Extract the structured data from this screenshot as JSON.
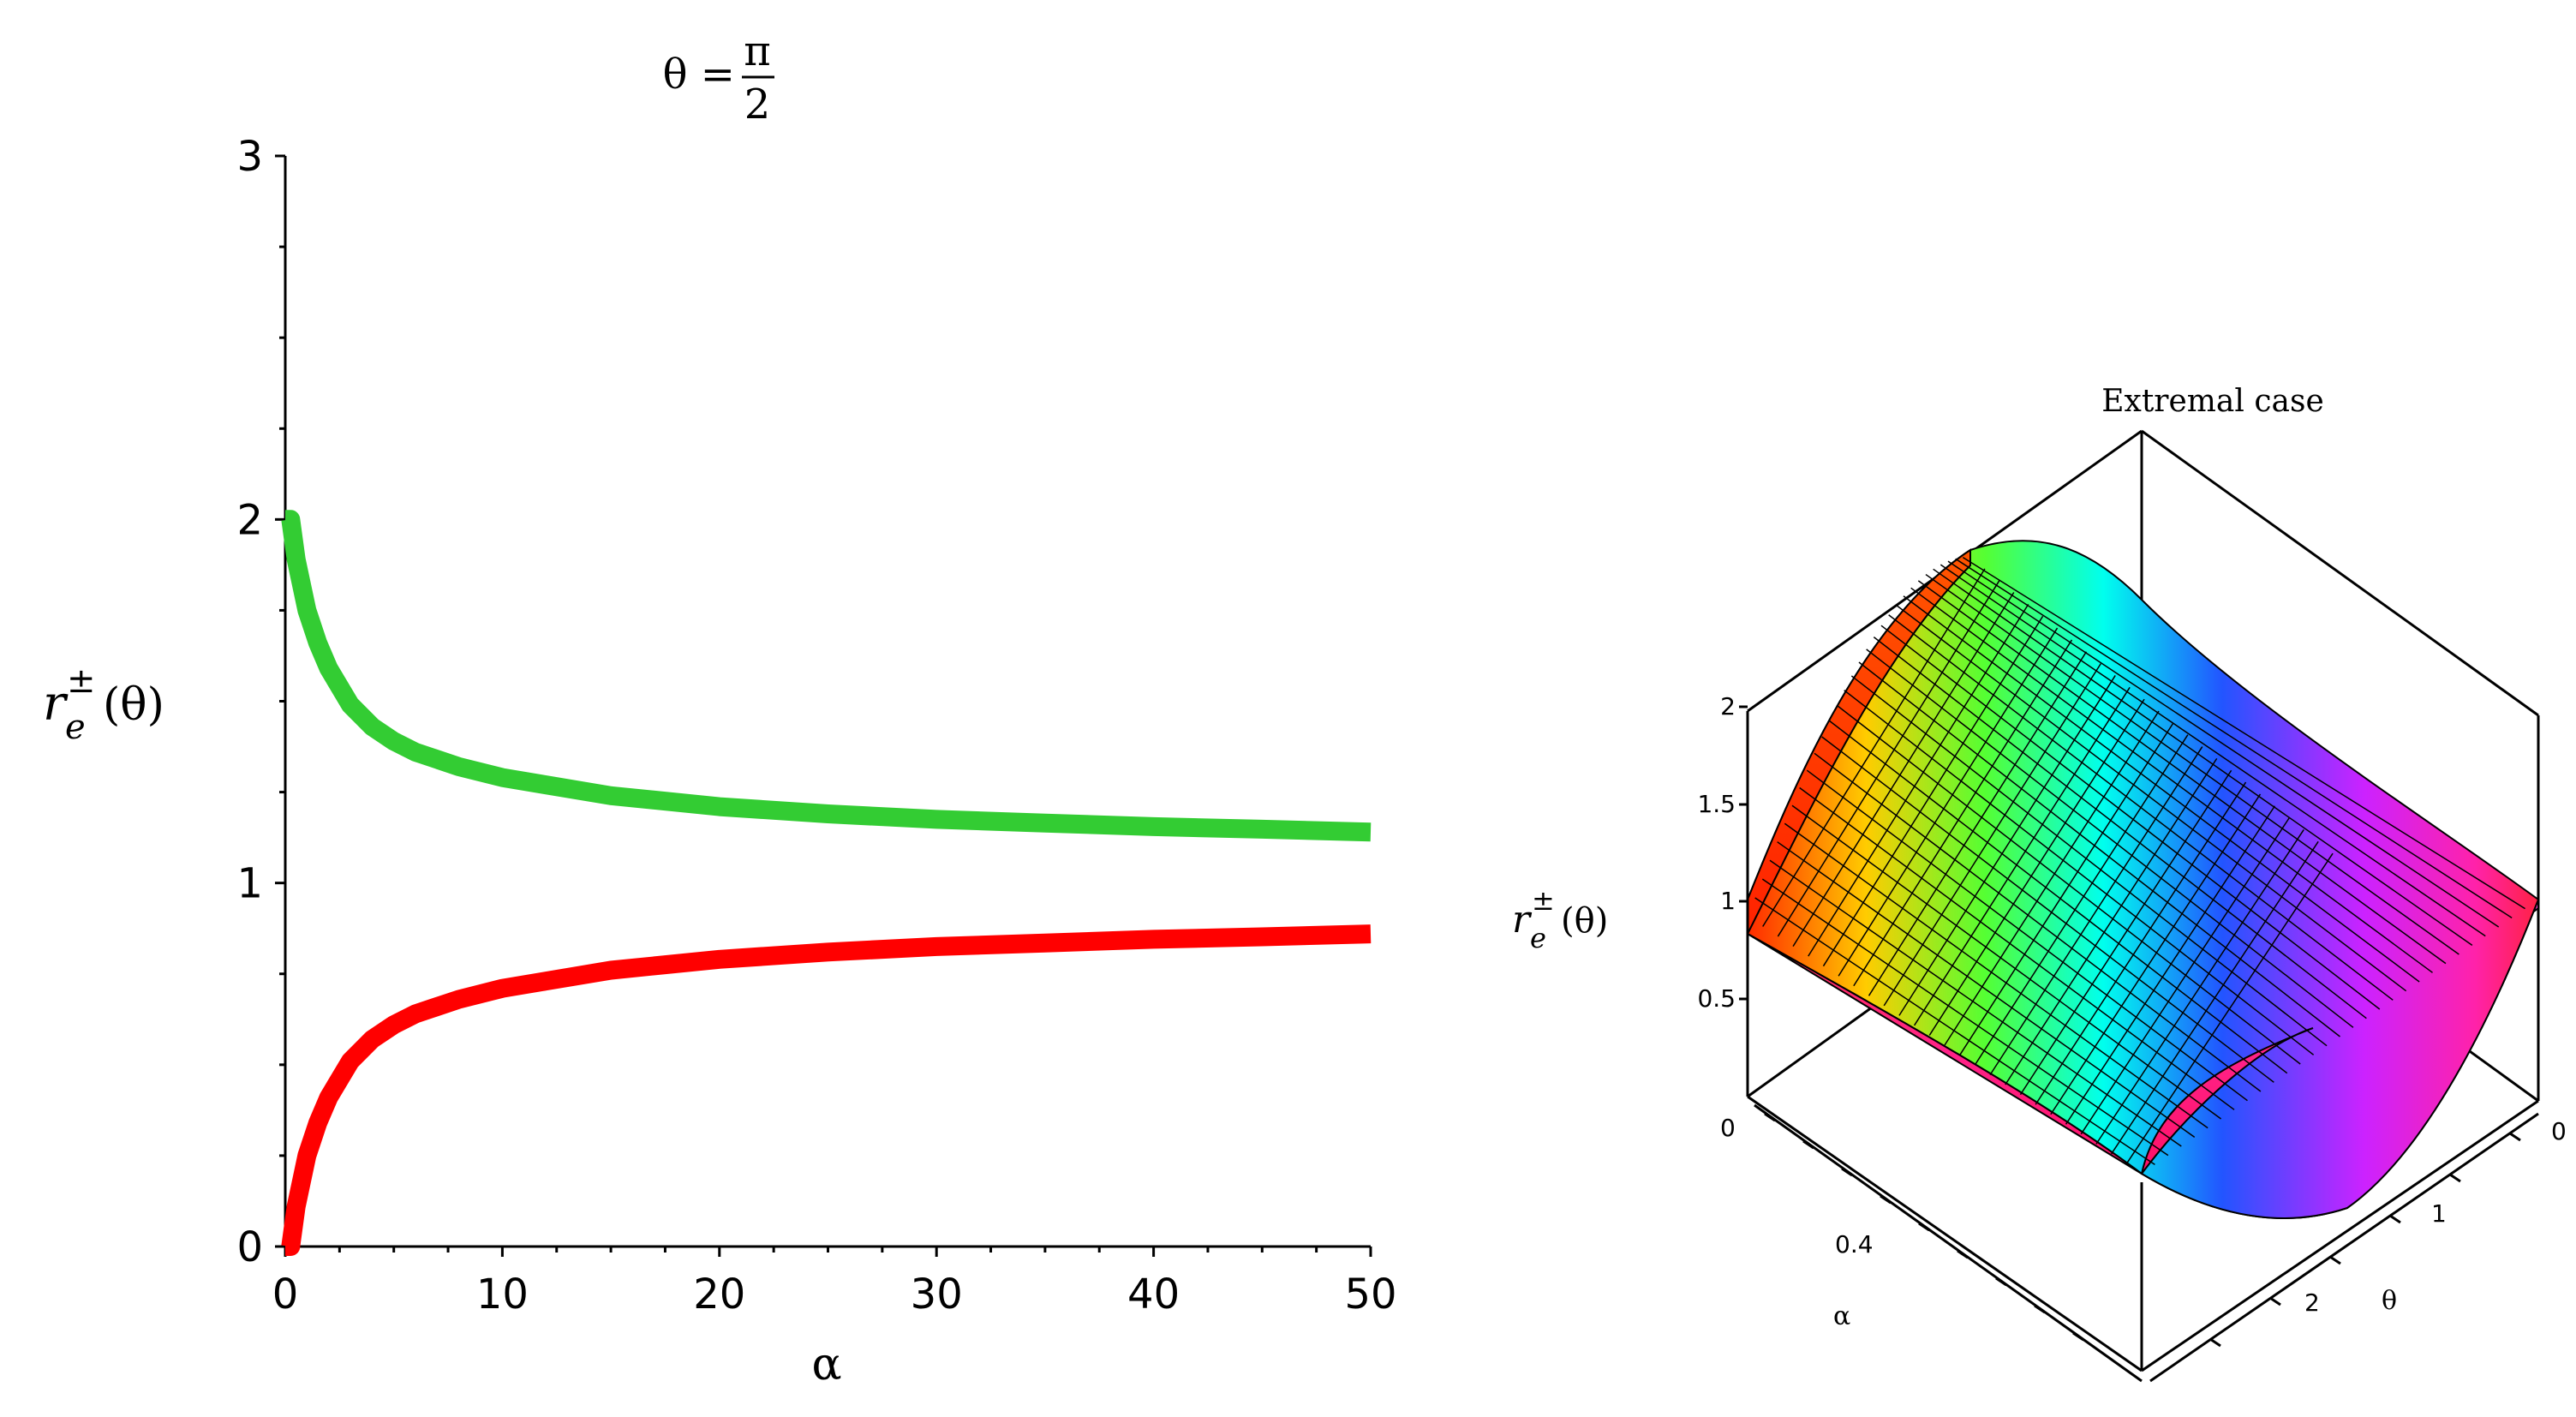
{
  "chart_data": [
    {
      "type": "line",
      "title": "θ = π/2",
      "title_parts": {
        "lhs": "θ =",
        "num": "π",
        "den": "2"
      },
      "xlabel": "α",
      "ylabel": {
        "base": "r",
        "sub": "e",
        "sup": "±",
        "arg": "(θ)"
      },
      "xlim": [
        0,
        50
      ],
      "ylim": [
        0,
        3
      ],
      "xticks": [
        "0",
        "10",
        "20",
        "30",
        "40",
        "50"
      ],
      "yticks": [
        "0",
        "1",
        "2",
        "3"
      ],
      "grid": false,
      "series": [
        {
          "color": "#33cc33",
          "x": [
            0,
            0.25,
            0.5,
            1,
            1.5,
            2,
            3,
            4,
            5,
            6,
            8,
            10,
            12,
            15,
            20,
            25,
            30,
            35,
            40,
            45,
            50
          ],
          "y": [
            2.0,
            2.0,
            1.89,
            1.75,
            1.66,
            1.59,
            1.49,
            1.43,
            1.39,
            1.36,
            1.32,
            1.29,
            1.27,
            1.24,
            1.21,
            1.19,
            1.175,
            1.165,
            1.155,
            1.148,
            1.14
          ]
        },
        {
          "color": "#ff0000",
          "x": [
            0,
            0.25,
            0.5,
            1,
            1.5,
            2,
            3,
            4,
            5,
            6,
            8,
            10,
            12,
            15,
            20,
            25,
            30,
            35,
            40,
            45,
            50
          ],
          "y": [
            0.0,
            0.0,
            0.11,
            0.25,
            0.34,
            0.41,
            0.51,
            0.57,
            0.61,
            0.64,
            0.68,
            0.71,
            0.73,
            0.76,
            0.79,
            0.81,
            0.825,
            0.835,
            0.845,
            0.852,
            0.86
          ]
        }
      ]
    },
    {
      "type": "surface",
      "title": "Extremal case",
      "xlabel": "α",
      "ylabel": "θ",
      "zlabel": {
        "base": "r",
        "sub": "e",
        "sup": "±",
        "arg": "(θ)"
      },
      "zticks": [
        "0.5",
        "1",
        "1.5",
        "2"
      ],
      "alpha_ticks": [
        "0",
        "0.4"
      ],
      "theta_ticks": [
        "0",
        "1",
        "2"
      ],
      "z_range": [
        0,
        2
      ],
      "colormap": "hue rainbow along θ (red → yellow → green → cyan → blue → magenta → red)"
    }
  ]
}
